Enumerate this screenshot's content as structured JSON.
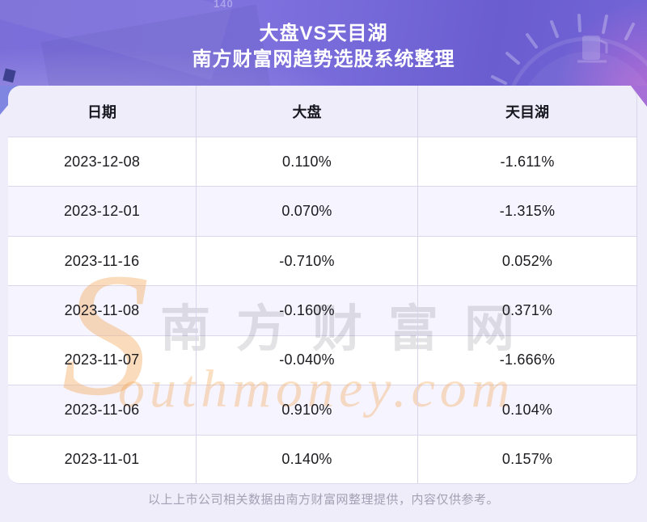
{
  "banner": {
    "title": "大盘VS天目湖",
    "subtitle": "南方财富网趋势选股系统整理",
    "decoration_number": "140"
  },
  "chart_data": {
    "type": "table",
    "title": "大盘VS天目湖",
    "subtitle": "南方财富网趋势选股系统整理",
    "columns": [
      "日期",
      "大盘",
      "天目湖"
    ],
    "rows": [
      [
        "2023-12-08",
        "0.110%",
        "-1.611%"
      ],
      [
        "2023-12-01",
        "0.070%",
        "-1.315%"
      ],
      [
        "2023-11-16",
        "-0.710%",
        "0.052%"
      ],
      [
        "2023-11-08",
        "-0.160%",
        "0.371%"
      ],
      [
        "2023-11-07",
        "-0.040%",
        "-1.666%"
      ],
      [
        "2023-11-06",
        "0.910%",
        "0.104%"
      ],
      [
        "2023-11-01",
        "0.140%",
        "0.157%"
      ]
    ]
  },
  "watermark": {
    "s_letter": "S",
    "cn": "南方财富网",
    "en": "outhmoney.com"
  },
  "footer": {
    "disclaimer": "以上上市公司相关数据由南方财富网整理提供，内容仅供参考。"
  },
  "colors": {
    "banner_purple": "#7468D8",
    "banner_accent_pink": "#E270D4",
    "header_row_bg": "#EFEDF9",
    "alt_row_bg": "#F6F4FE",
    "page_bg": "#EFEDFA",
    "divider": "#D8D5EC",
    "text_dark": "#1B1B1F",
    "footer_text": "#A3A1B3",
    "watermark_orange": "#F2A050",
    "watermark_gray": "#DEDEE2"
  }
}
